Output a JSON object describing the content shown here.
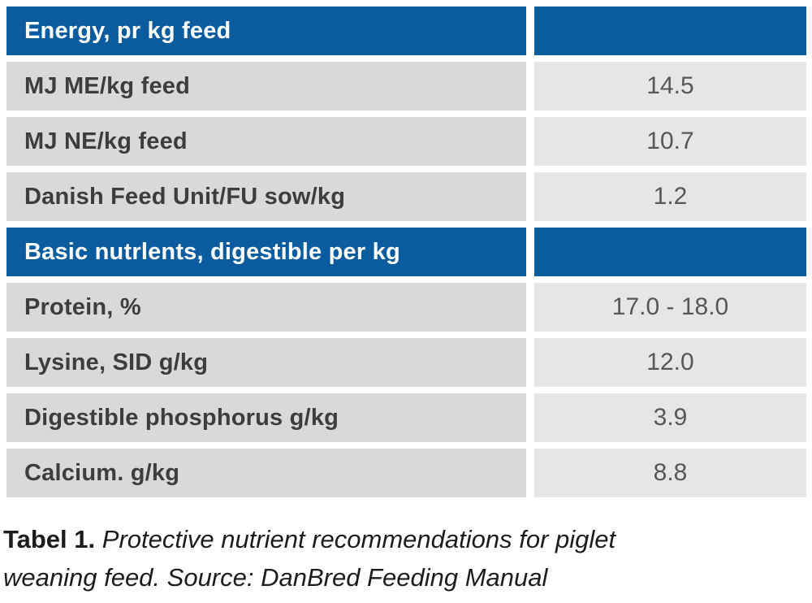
{
  "colors": {
    "header_bg": "#0b5c9e",
    "header_text": "#ffffff",
    "label_cell_bg": "#d9d9d9",
    "value_cell_bg": "#e6e6e6",
    "label_text": "#3d3d3d",
    "value_text": "#575757",
    "caption_text": "#1c1c1c"
  },
  "chart_data": {
    "type": "table",
    "sections": [
      {
        "header": "Energy, pr kg feed",
        "rows": [
          {
            "label": "MJ ME/kg feed",
            "value": "14.5"
          },
          {
            "label": "MJ NE/kg feed",
            "value": "10.7"
          },
          {
            "label": "Danish Feed Unit/FU sow/kg",
            "value": "1.2"
          }
        ]
      },
      {
        "header": "Basic nutrlents, digestible per kg",
        "rows": [
          {
            "label": "Protein, %",
            "value": "17.0 - 18.0"
          },
          {
            "label": "Lysine, SID g/kg",
            "value": "12.0"
          },
          {
            "label": "Digestible phosphorus g/kg",
            "value": "3.9"
          },
          {
            "label": "Calcium. g/kg",
            "value": "8.8"
          }
        ]
      }
    ]
  },
  "caption": {
    "label": "Tabel 1.",
    "line1_rest": "Protective nutrient recommendations for piglet",
    "line2": "weaning feed. Source: DanBred Feeding Manual"
  }
}
